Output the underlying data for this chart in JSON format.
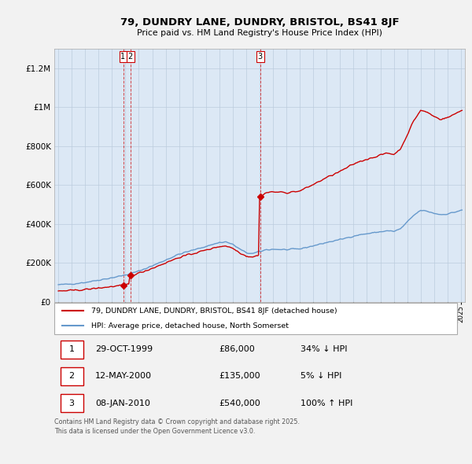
{
  "title": "79, DUNDRY LANE, DUNDRY, BRISTOL, BS41 8JF",
  "subtitle": "Price paid vs. HM Land Registry's House Price Index (HPI)",
  "hpi_color": "#6699cc",
  "price_color": "#cc0000",
  "background_color": "#f2f2f2",
  "plot_bg_color": "#dce8f5",
  "ylim": [
    0,
    1300000
  ],
  "yticks": [
    0,
    200000,
    400000,
    600000,
    800000,
    1000000,
    1200000
  ],
  "sales": [
    {
      "date_num": 1999.83,
      "price": 86000,
      "label": "1"
    },
    {
      "date_num": 2000.37,
      "price": 135000,
      "label": "2"
    },
    {
      "date_num": 2010.03,
      "price": 540000,
      "label": "3"
    }
  ],
  "legend_entries": [
    "79, DUNDRY LANE, DUNDRY, BRISTOL, BS41 8JF (detached house)",
    "HPI: Average price, detached house, North Somerset"
  ],
  "table_entries": [
    {
      "num": "1",
      "date": "29-OCT-1999",
      "price": "£86,000",
      "hpi": "34% ↓ HPI"
    },
    {
      "num": "2",
      "date": "12-MAY-2000",
      "price": "£135,000",
      "hpi": "5% ↓ HPI"
    },
    {
      "num": "3",
      "date": "08-JAN-2010",
      "price": "£540,000",
      "hpi": "100% ↑ HPI"
    }
  ],
  "footnote": "Contains HM Land Registry data © Crown copyright and database right 2025.\nThis data is licensed under the Open Government Licence v3.0."
}
